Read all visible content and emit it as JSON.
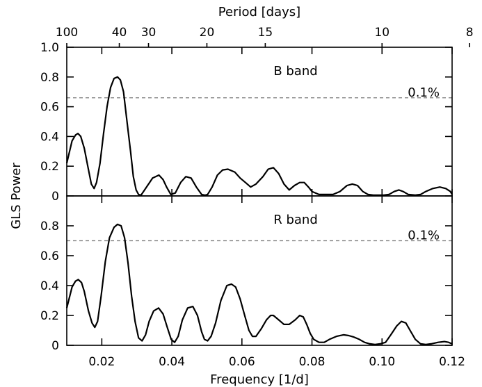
{
  "chart_data": {
    "type": "line",
    "top_axis": {
      "label": "Period [days]",
      "tick_labels": [
        "100",
        "40",
        "30",
        "20",
        "15",
        "10",
        "8"
      ],
      "tick_periods": [
        100,
        40,
        30,
        20,
        15,
        10,
        8
      ]
    },
    "xlabel": "Frequency [1/d]",
    "ylabel": "GLS Power",
    "xlim": [
      0.01,
      0.12
    ],
    "x_ticks": [
      0.02,
      0.04,
      0.06,
      0.08,
      0.1,
      0.12
    ],
    "x_tick_labels": [
      "0.02",
      "0.04",
      "0.06",
      "0.08",
      "0.10",
      "0.12"
    ],
    "panels": [
      {
        "label": "B band",
        "ylim": [
          0,
          1.0
        ],
        "y_ticks": [
          0,
          0.2,
          0.4,
          0.6,
          0.8,
          1.0
        ],
        "y_tick_labels": [
          "0",
          "0.2",
          "0.4",
          "0.6",
          "0.8",
          "1.0"
        ],
        "threshold": {
          "value": 0.66,
          "label": "0.1%"
        },
        "series": [
          {
            "x": [
              0.01,
              0.0115,
              0.0125,
              0.0132,
              0.014,
              0.015,
              0.016,
              0.017,
              0.0178,
              0.0185,
              0.0195,
              0.0205,
              0.0215,
              0.0225,
              0.0235,
              0.0245,
              0.0253,
              0.0262,
              0.0272,
              0.0282,
              0.029,
              0.0298,
              0.0305,
              0.0312,
              0.0325,
              0.0345,
              0.0363,
              0.0375,
              0.0385,
              0.0397,
              0.041,
              0.0425,
              0.044,
              0.0455,
              0.047,
              0.0485,
              0.0495,
              0.0502,
              0.0515,
              0.053,
              0.0545,
              0.056,
              0.058,
              0.0595,
              0.061,
              0.0625,
              0.064,
              0.066,
              0.0675,
              0.069,
              0.0705,
              0.072,
              0.0735,
              0.075,
              0.0765,
              0.0778,
              0.079,
              0.08,
              0.082,
              0.084,
              0.086,
              0.088,
              0.09,
              0.0915,
              0.093,
              0.0945,
              0.096,
              0.0975,
              0.099,
              0.1005,
              0.102,
              0.1035,
              0.1048,
              0.106,
              0.1075,
              0.1095,
              0.111,
              0.1125,
              0.1145,
              0.1165,
              0.1182,
              0.1195,
              0.12
            ],
            "y": [
              0.22,
              0.37,
              0.41,
              0.42,
              0.4,
              0.32,
              0.2,
              0.08,
              0.05,
              0.09,
              0.22,
              0.42,
              0.6,
              0.73,
              0.79,
              0.8,
              0.78,
              0.7,
              0.5,
              0.3,
              0.13,
              0.04,
              0.01,
              0.005,
              0.05,
              0.12,
              0.14,
              0.11,
              0.06,
              0.01,
              0.02,
              0.09,
              0.13,
              0.12,
              0.06,
              0.01,
              0.005,
              0.01,
              0.06,
              0.14,
              0.175,
              0.18,
              0.16,
              0.12,
              0.09,
              0.06,
              0.08,
              0.13,
              0.18,
              0.19,
              0.15,
              0.08,
              0.04,
              0.07,
              0.09,
              0.09,
              0.06,
              0.03,
              0.01,
              0.01,
              0.01,
              0.03,
              0.07,
              0.08,
              0.07,
              0.03,
              0.01,
              0.005,
              0.005,
              0.005,
              0.01,
              0.03,
              0.04,
              0.03,
              0.01,
              0.005,
              0.01,
              0.03,
              0.05,
              0.06,
              0.05,
              0.03,
              0.01
            ]
          }
        ]
      },
      {
        "label": "R band",
        "ylim": [
          0,
          1.0
        ],
        "y_ticks": [
          0,
          0.2,
          0.4,
          0.6,
          0.8
        ],
        "y_tick_labels": [
          "0",
          "0.2",
          "0.4",
          "0.6",
          "0.8"
        ],
        "threshold": {
          "value": 0.7,
          "label": "0.1%"
        },
        "series": [
          {
            "x": [
              0.01,
              0.0115,
              0.0125,
              0.0133,
              0.0142,
              0.015,
              0.0162,
              0.0172,
              0.018,
              0.0188,
              0.0198,
              0.021,
              0.0222,
              0.0235,
              0.0245,
              0.0255,
              0.0265,
              0.0275,
              0.0285,
              0.0295,
              0.0305,
              0.0315,
              0.0325,
              0.0335,
              0.0348,
              0.0362,
              0.0375,
              0.0387,
              0.0398,
              0.0408,
              0.0418,
              0.043,
              0.0445,
              0.046,
              0.0473,
              0.0485,
              0.0493,
              0.0502,
              0.0512,
              0.0525,
              0.054,
              0.0557,
              0.057,
              0.0582,
              0.0595,
              0.0608,
              0.062,
              0.063,
              0.064,
              0.0655,
              0.067,
              0.0682,
              0.069,
              0.0705,
              0.072,
              0.0735,
              0.0752,
              0.0765,
              0.0775,
              0.0785,
              0.0795,
              0.0805,
              0.082,
              0.0835,
              0.085,
              0.087,
              0.089,
              0.0905,
              0.092,
              0.0935,
              0.095,
              0.0965,
              0.098,
              0.0995,
              0.101,
              0.1025,
              0.1042,
              0.1055,
              0.1068,
              0.108,
              0.1095,
              0.111,
              0.1125,
              0.114,
              0.116,
              0.1178,
              0.119,
              0.12
            ],
            "y": [
              0.25,
              0.39,
              0.43,
              0.44,
              0.42,
              0.36,
              0.23,
              0.15,
              0.12,
              0.16,
              0.33,
              0.56,
              0.72,
              0.79,
              0.81,
              0.8,
              0.72,
              0.55,
              0.33,
              0.16,
              0.05,
              0.03,
              0.07,
              0.16,
              0.23,
              0.25,
              0.21,
              0.12,
              0.04,
              0.02,
              0.06,
              0.17,
              0.25,
              0.26,
              0.2,
              0.09,
              0.04,
              0.03,
              0.06,
              0.15,
              0.3,
              0.4,
              0.41,
              0.39,
              0.31,
              0.2,
              0.1,
              0.06,
              0.06,
              0.11,
              0.17,
              0.2,
              0.2,
              0.17,
              0.14,
              0.14,
              0.17,
              0.2,
              0.19,
              0.14,
              0.08,
              0.04,
              0.02,
              0.02,
              0.04,
              0.06,
              0.07,
              0.065,
              0.055,
              0.04,
              0.02,
              0.01,
              0.005,
              0.01,
              0.02,
              0.07,
              0.13,
              0.16,
              0.15,
              0.1,
              0.04,
              0.01,
              0.005,
              0.01,
              0.02,
              0.025,
              0.02,
              0.01
            ]
          }
        ]
      }
    ]
  }
}
